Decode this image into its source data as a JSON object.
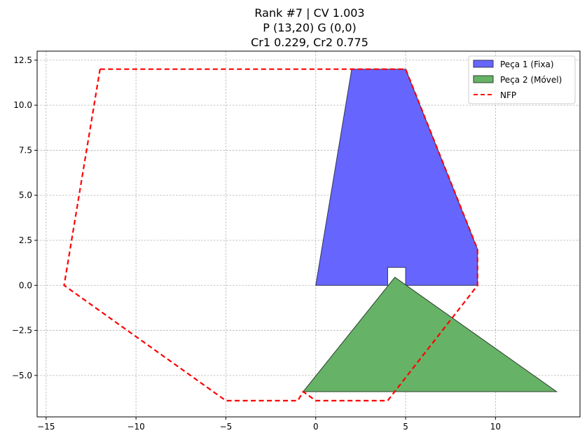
{
  "chart_data": {
    "type": "area",
    "title_lines": [
      "Rank #7 | CV 1.003",
      "P (13,20) G (0,0)",
      "Cr1 0.229, Cr2 0.775"
    ],
    "xlim": [
      -15.5,
      14.7
    ],
    "ylim": [
      -7.3,
      13.0
    ],
    "x_ticks": [
      -15,
      -10,
      -5,
      0,
      5,
      10
    ],
    "y_ticks": [
      -5.0,
      -2.5,
      0.0,
      2.5,
      5.0,
      7.5,
      10.0,
      12.5
    ],
    "x_tick_labels": [
      "−15",
      "−10",
      "−5",
      "0",
      "5",
      "10"
    ],
    "y_tick_labels": [
      "−5.0",
      "−2.5",
      "0.0",
      "2.5",
      "5.0",
      "7.5",
      "10.0",
      "12.5"
    ],
    "grid": true,
    "legend_position": "top-right",
    "series": [
      {
        "name": "Peça 1 (Fixa)",
        "kind": "polygon",
        "fill": "#6666ff",
        "stroke": "#333355",
        "points": [
          [
            0,
            0
          ],
          [
            2,
            12
          ],
          [
            5,
            12
          ],
          [
            9,
            2
          ],
          [
            9,
            0
          ],
          [
            5,
            0
          ],
          [
            5,
            1
          ],
          [
            4,
            1
          ],
          [
            4,
            0
          ]
        ]
      },
      {
        "name": "Peça 2 (Móvel)",
        "kind": "polygon",
        "fill": "#66b266",
        "stroke": "#2f3f2f",
        "points": [
          [
            4.4,
            0.45
          ],
          [
            13.4,
            -5.9
          ],
          [
            -0.7,
            -5.9
          ]
        ]
      },
      {
        "name": "NFP",
        "kind": "dashed-outline",
        "stroke": "#ff0000",
        "points": [
          [
            -12,
            12
          ],
          [
            5,
            12
          ],
          [
            9,
            2
          ],
          [
            9,
            0
          ],
          [
            4,
            -6.4
          ],
          [
            0,
            -6.4
          ],
          [
            -0.7,
            -5.9
          ],
          [
            -1,
            -6.4
          ],
          [
            -5,
            -6.4
          ],
          [
            -14,
            0
          ],
          [
            -12,
            12
          ]
        ]
      }
    ]
  }
}
